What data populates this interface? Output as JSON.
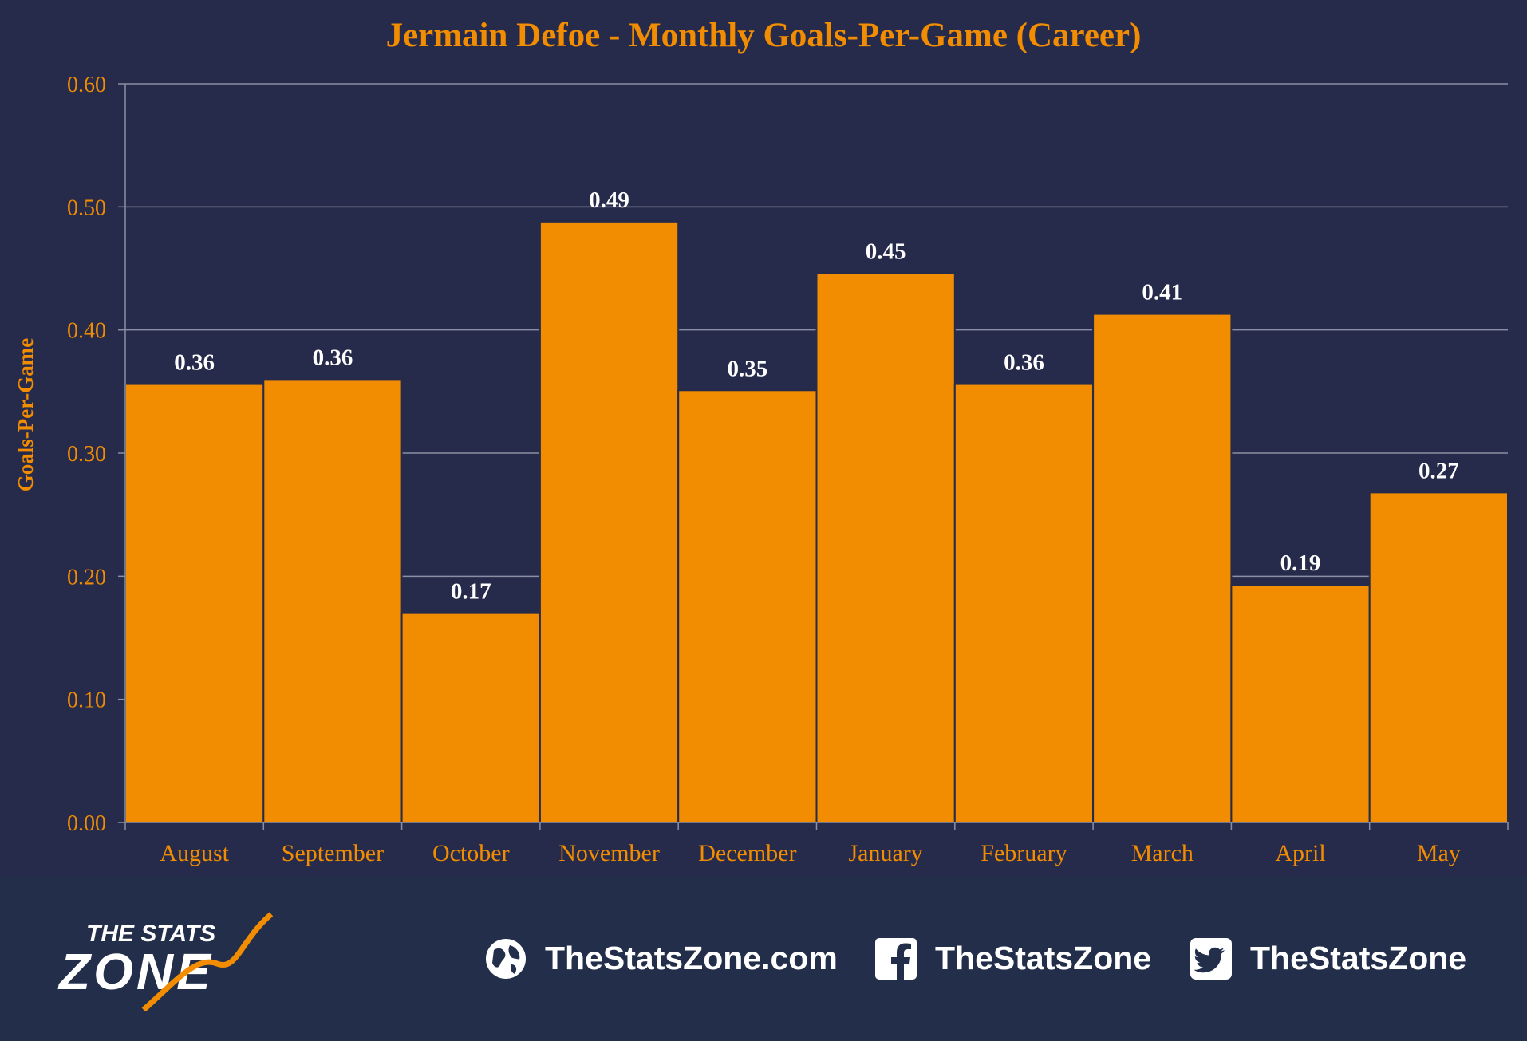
{
  "chart_data": {
    "type": "bar",
    "title": "Jermain Defoe - Monthly Goals-Per-Game (Career)",
    "xlabel": "",
    "ylabel": "Goals-Per-Game",
    "ylim": [
      0,
      0.6
    ],
    "yticks": [
      "0.00",
      "0.10",
      "0.20",
      "0.30",
      "0.40",
      "0.50",
      "0.60"
    ],
    "grid": true,
    "categories": [
      "August",
      "September",
      "October",
      "November",
      "December",
      "January",
      "February",
      "March",
      "April",
      "May"
    ],
    "values": [
      0.356,
      0.36,
      0.17,
      0.488,
      0.351,
      0.446,
      0.356,
      0.413,
      0.193,
      0.268
    ],
    "data_labels": [
      "0.36",
      "0.36",
      "0.17",
      "0.49",
      "0.35",
      "0.45",
      "0.36",
      "0.41",
      "0.19",
      "0.27"
    ],
    "colors": {
      "bar": "#f28c00",
      "text_accent": "#f28c00",
      "label": "#ffffff",
      "grid": "#8a8fa3",
      "background": "#272b4b"
    }
  },
  "footer": {
    "logo_line1": "THE STATS",
    "logo_line2": "ZONE",
    "website": "TheStatsZone.com",
    "facebook": "TheStatsZone",
    "twitter": "TheStatsZone",
    "icons": [
      "globe-icon",
      "facebook-icon",
      "twitter-icon"
    ]
  }
}
